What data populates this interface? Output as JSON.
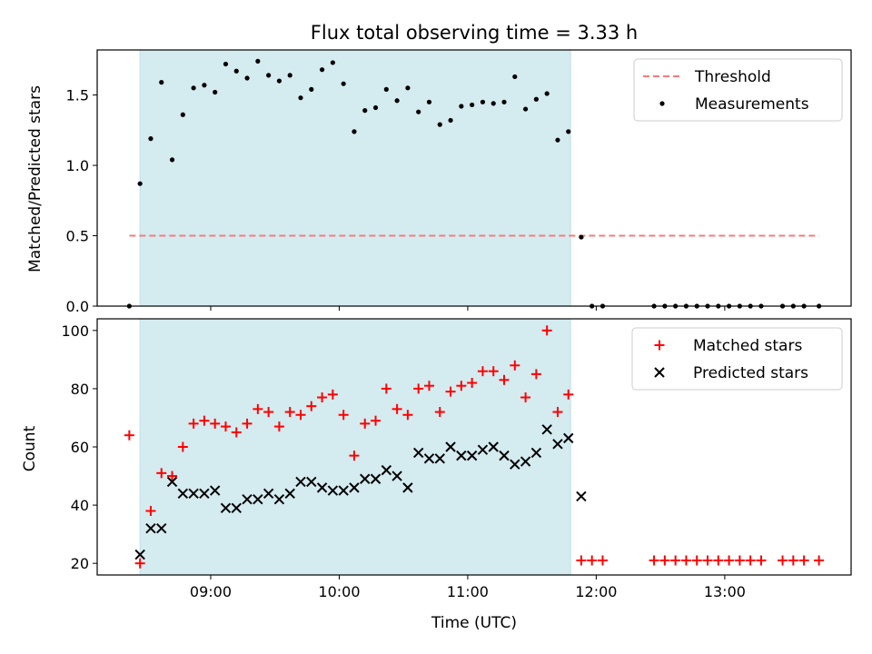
{
  "chart_data": [
    {
      "type": "scatter",
      "title": "Flux total observing time = 3.33 h",
      "ylabel": "Matched/Predicted stars",
      "xlabel": "",
      "ylim": [
        0,
        1.82
      ],
      "xlim": [
        "08:07",
        "13:59"
      ],
      "yticks": [
        "0.0",
        "0.5",
        "1.0",
        "1.5"
      ],
      "shaded_interval": [
        "08:27",
        "11:48"
      ],
      "shade_color": "#d4ebf0",
      "legend_placement": "top-right",
      "grid": false,
      "threshold": {
        "name": "Threshold",
        "value": 0.5,
        "x_range": [
          "08:22",
          "13:44"
        ],
        "color": "#f47c7c"
      },
      "series": [
        {
          "name": "Measurements",
          "color": "#000000",
          "x": [
            "08:22",
            "08:27",
            "08:32",
            "08:37",
            "08:42",
            "08:47",
            "08:52",
            "08:57",
            "09:02",
            "09:07",
            "09:12",
            "09:17",
            "09:22",
            "09:27",
            "09:32",
            "09:37",
            "09:42",
            "09:47",
            "09:52",
            "09:57",
            "10:02",
            "10:07",
            "10:12",
            "10:17",
            "10:22",
            "10:27",
            "10:32",
            "10:37",
            "10:42",
            "10:47",
            "10:52",
            "10:57",
            "11:02",
            "11:07",
            "11:12",
            "11:17",
            "11:22",
            "11:27",
            "11:32",
            "11:37",
            "11:42",
            "11:47",
            "11:53",
            "11:58",
            "12:03",
            "12:27",
            "12:32",
            "12:37",
            "12:42",
            "12:47",
            "12:52",
            "12:57",
            "13:02",
            "13:07",
            "13:12",
            "13:17",
            "13:27",
            "13:32",
            "13:37",
            "13:44"
          ],
          "y": [
            0.0,
            0.87,
            1.19,
            1.59,
            1.04,
            1.36,
            1.55,
            1.57,
            1.52,
            1.72,
            1.67,
            1.62,
            1.74,
            1.64,
            1.6,
            1.64,
            1.48,
            1.54,
            1.68,
            1.73,
            1.58,
            1.24,
            1.39,
            1.41,
            1.54,
            1.46,
            1.55,
            1.38,
            1.45,
            1.29,
            1.32,
            1.42,
            1.43,
            1.45,
            1.44,
            1.45,
            1.63,
            1.4,
            1.47,
            1.51,
            1.18,
            1.24,
            0.49,
            0.0,
            0.0,
            0.0,
            0.0,
            0.0,
            0.0,
            0.0,
            0.0,
            0.0,
            0.0,
            0.0,
            0.0,
            0.0,
            0.0,
            0.0,
            0.0,
            0.0
          ]
        }
      ]
    },
    {
      "type": "scatter",
      "title": "",
      "ylabel": "Count",
      "xlabel": "Time (UTC)",
      "ylim": [
        16,
        104
      ],
      "xlim": [
        "08:07",
        "13:59"
      ],
      "yticks": [
        "20",
        "40",
        "60",
        "80",
        "100"
      ],
      "xticks": [
        "09:00",
        "10:00",
        "11:00",
        "12:00",
        "13:00"
      ],
      "shaded_interval": [
        "08:27",
        "11:48"
      ],
      "legend_placement": "top-right",
      "grid": false,
      "series": [
        {
          "name": "Matched stars",
          "marker": "+",
          "color": "#ff0000",
          "x": [
            "08:22",
            "08:27",
            "08:32",
            "08:37",
            "08:42",
            "08:47",
            "08:52",
            "08:57",
            "09:02",
            "09:07",
            "09:12",
            "09:17",
            "09:22",
            "09:27",
            "09:32",
            "09:37",
            "09:42",
            "09:47",
            "09:52",
            "09:57",
            "10:02",
            "10:07",
            "10:12",
            "10:17",
            "10:22",
            "10:27",
            "10:32",
            "10:37",
            "10:42",
            "10:47",
            "10:52",
            "10:57",
            "11:02",
            "11:07",
            "11:12",
            "11:17",
            "11:22",
            "11:27",
            "11:32",
            "11:37",
            "11:42",
            "11:47",
            "11:53",
            "11:58",
            "12:03",
            "12:27",
            "12:32",
            "12:37",
            "12:42",
            "12:47",
            "12:52",
            "12:57",
            "13:02",
            "13:07",
            "13:12",
            "13:17",
            "13:27",
            "13:32",
            "13:37",
            "13:44"
          ],
          "y": [
            64,
            20,
            38,
            51,
            50,
            60,
            68,
            69,
            68,
            67,
            65,
            68,
            73,
            72,
            67,
            72,
            71,
            74,
            77,
            78,
            71,
            57,
            68,
            69,
            80,
            73,
            71,
            80,
            81,
            72,
            79,
            81,
            82,
            86,
            86,
            83,
            88,
            77,
            85,
            100,
            72,
            78,
            21,
            21,
            21,
            21,
            21,
            21,
            21,
            21,
            21,
            21,
            21,
            21,
            21,
            21,
            21,
            21,
            21,
            21
          ]
        },
        {
          "name": "Predicted stars",
          "marker": "x",
          "color": "#000000",
          "x": [
            "08:27",
            "08:32",
            "08:37",
            "08:42",
            "08:47",
            "08:52",
            "08:57",
            "09:02",
            "09:07",
            "09:12",
            "09:17",
            "09:22",
            "09:27",
            "09:32",
            "09:37",
            "09:42",
            "09:47",
            "09:52",
            "09:57",
            "10:02",
            "10:07",
            "10:12",
            "10:17",
            "10:22",
            "10:27",
            "10:32",
            "10:37",
            "10:42",
            "10:47",
            "10:52",
            "10:57",
            "11:02",
            "11:07",
            "11:12",
            "11:17",
            "11:22",
            "11:27",
            "11:32",
            "11:37",
            "11:42",
            "11:47",
            "11:53"
          ],
          "y": [
            23,
            32,
            32,
            48,
            44,
            44,
            44,
            45,
            39,
            39,
            42,
            42,
            44,
            42,
            44,
            48,
            48,
            46,
            45,
            45,
            46,
            49,
            49,
            52,
            50,
            46,
            58,
            56,
            56,
            60,
            57,
            57,
            59,
            60,
            57,
            54,
            55,
            58,
            66,
            61,
            63,
            43
          ]
        }
      ]
    }
  ]
}
